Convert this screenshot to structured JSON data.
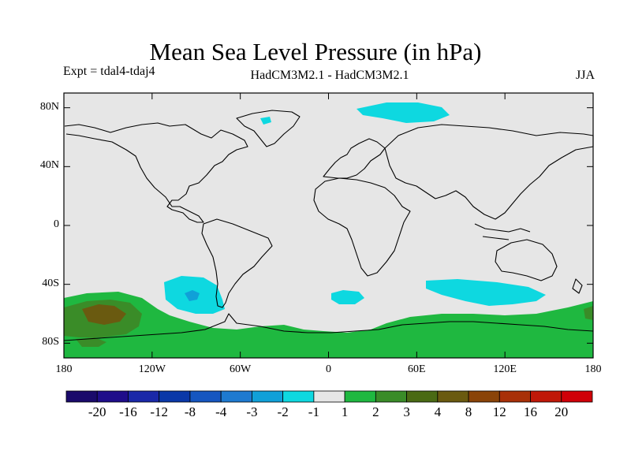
{
  "header": {
    "title": "Mean Sea Level Pressure (in hPa)",
    "experiment": "Expt = tdal4-tdaj4",
    "models": "HadCM3M2.1 - HadCM3M2.1",
    "season": "JJA"
  },
  "map": {
    "projection": "cylindrical-equidistant",
    "lon_range": [
      -180,
      180
    ],
    "lat_range": [
      -90,
      90
    ],
    "background_color": "#e6e6e6",
    "coastline_color": "#000000",
    "lat_ticks": [
      {
        "value": 80,
        "label": "80N"
      },
      {
        "value": 40,
        "label": "40N"
      },
      {
        "value": 0,
        "label": "0"
      },
      {
        "value": -40,
        "label": "40S"
      },
      {
        "value": -80,
        "label": "80S"
      }
    ],
    "lon_ticks": [
      {
        "value": -180,
        "label": "180"
      },
      {
        "value": -120,
        "label": "120W"
      },
      {
        "value": -60,
        "label": "60W"
      },
      {
        "value": 0,
        "label": "0"
      },
      {
        "value": 60,
        "label": "60E"
      },
      {
        "value": 120,
        "label": "120E"
      },
      {
        "value": 180,
        "label": "180"
      }
    ]
  },
  "colorbar": {
    "colors": [
      "#1a0a6b",
      "#1f0d8a",
      "#1a28a8",
      "#0a38a8",
      "#1656c0",
      "#1e7ad0",
      "#10a0d8",
      "#0ed8e0",
      "#e6e6e6",
      "#1fb840",
      "#3a8c28",
      "#4a6a14",
      "#6a5a10",
      "#8a4408",
      "#a83008",
      "#c01808",
      "#d00008"
    ],
    "labels": [
      "-20",
      "-16",
      "-12",
      "-8",
      "-4",
      "-3",
      "-2",
      "-1",
      "1",
      "2",
      "3",
      "4",
      "8",
      "12",
      "16",
      "20"
    ]
  }
}
